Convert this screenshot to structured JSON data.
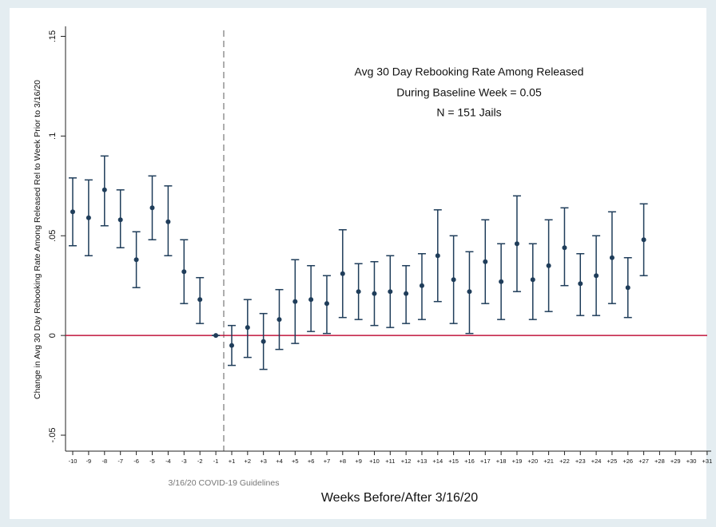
{
  "chart_data": {
    "type": "errorbar",
    "title_lines": [
      "Avg 30 Day Rebooking Rate Among Released",
      "During Baseline Week = 0.05",
      "N = 151 Jails"
    ],
    "x_label": "Weeks Before/After 3/16/20",
    "y_label": "Change in Avg 30 Day Rebooking Rate Among Released Rel to Week Prior to 3/16/20",
    "event_label": "3/16/20 COVID-19 Guidelines",
    "categories": [
      "-10",
      "-9",
      "-8",
      "-7",
      "-6",
      "-5",
      "-4",
      "-3",
      "-2",
      "-1",
      "+1",
      "+2",
      "+3",
      "+4",
      "+5",
      "+6",
      "+7",
      "+8",
      "+9",
      "+10",
      "+11",
      "+12",
      "+13",
      "+14",
      "+15",
      "+16",
      "+17",
      "+18",
      "+19",
      "+20",
      "+21",
      "+22",
      "+23",
      "+24",
      "+25",
      "+26",
      "+27",
      "+28",
      "+29",
      "+30",
      "+31"
    ],
    "values": [
      0.062,
      0.059,
      0.073,
      0.058,
      0.038,
      0.064,
      0.057,
      0.032,
      0.018,
      0,
      -0.005,
      0.004,
      -0.003,
      0.008,
      0.017,
      0.018,
      0.016,
      0.031,
      0.022,
      0.021,
      0.022,
      0.021,
      0.025,
      0.04,
      0.028,
      0.022,
      0.037,
      0.027,
      0.046,
      0.028,
      0.035,
      0.044,
      0.026,
      0.03,
      0.039,
      0.024,
      0.048,
      null,
      null,
      null,
      null
    ],
    "ci_low": [
      0.045,
      0.04,
      0.055,
      0.044,
      0.024,
      0.048,
      0.04,
      0.016,
      0.006,
      0,
      -0.015,
      -0.011,
      -0.017,
      -0.007,
      -0.004,
      0.002,
      0.001,
      0.009,
      0.008,
      0.005,
      0.004,
      0.006,
      0.008,
      0.017,
      0.006,
      0.001,
      0.016,
      0.008,
      0.022,
      0.008,
      0.012,
      0.025,
      0.01,
      0.01,
      0.016,
      0.009,
      0.03,
      null,
      null,
      null,
      null
    ],
    "ci_high": [
      0.079,
      0.078,
      0.09,
      0.073,
      0.052,
      0.08,
      0.075,
      0.048,
      0.029,
      0,
      0.005,
      0.018,
      0.011,
      0.023,
      0.038,
      0.035,
      0.03,
      0.053,
      0.036,
      0.037,
      0.04,
      0.035,
      0.041,
      0.063,
      0.05,
      0.042,
      0.058,
      0.046,
      0.07,
      0.046,
      0.058,
      0.064,
      0.041,
      0.05,
      0.062,
      0.039,
      0.066,
      null,
      null,
      null,
      null
    ],
    "color": "#1f3d5a",
    "hline": 0,
    "hline_color": "#c0143c",
    "ylim": [
      -0.058,
      0.155
    ],
    "yticks": [
      {
        "value": -0.05,
        "label": "-.05"
      },
      0,
      {
        "value": 0.05,
        "label": ".05"
      },
      {
        "value": 0.1,
        "label": ".1"
      },
      {
        "value": 0.15,
        "label": ".15"
      }
    ]
  }
}
